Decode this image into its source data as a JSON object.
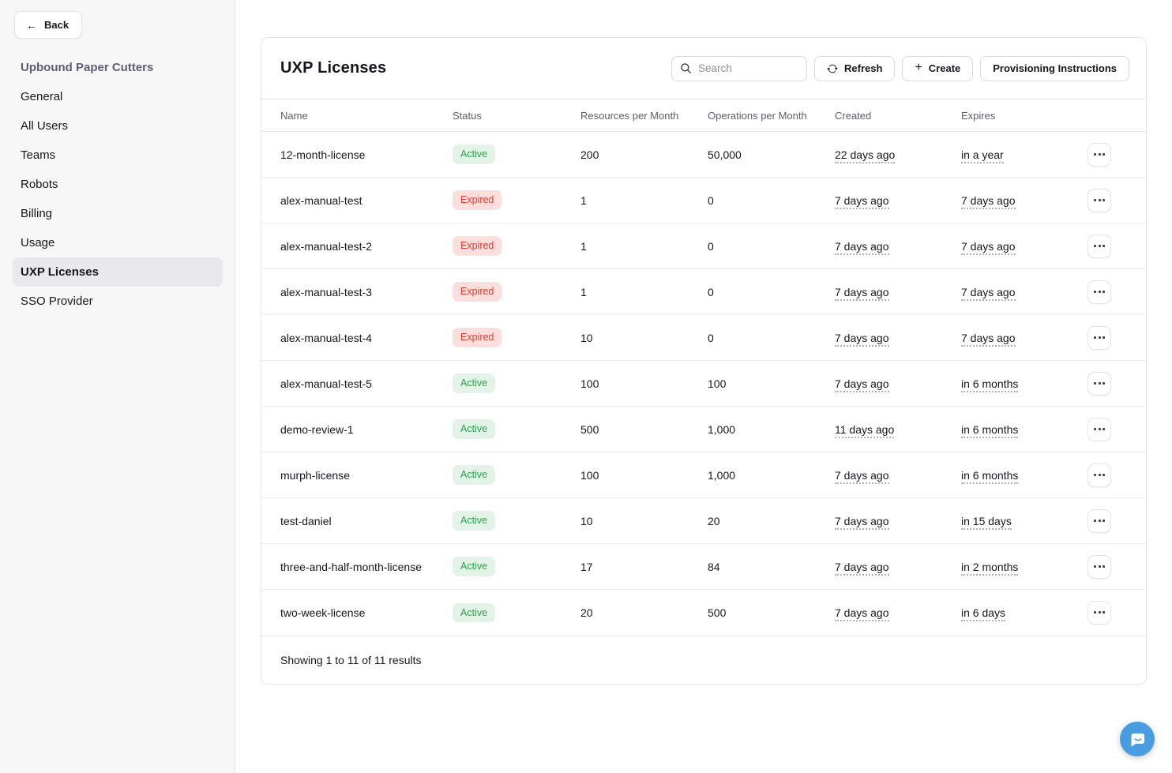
{
  "sidebar": {
    "back_label": "Back",
    "org_title": "Upbound Paper Cutters",
    "items": [
      {
        "label": "General",
        "active": false
      },
      {
        "label": "All Users",
        "active": false
      },
      {
        "label": "Teams",
        "active": false
      },
      {
        "label": "Robots",
        "active": false
      },
      {
        "label": "Billing",
        "active": false
      },
      {
        "label": "Usage",
        "active": false
      },
      {
        "label": "UXP Licenses",
        "active": true
      },
      {
        "label": "SSO Provider",
        "active": false
      }
    ]
  },
  "main": {
    "title": "UXP Licenses",
    "search_placeholder": "Search",
    "refresh_label": "Refresh",
    "create_label": "Create",
    "provisioning_label": "Provisioning Instructions",
    "table": {
      "columns": [
        "Name",
        "Status",
        "Resources per Month",
        "Operations per Month",
        "Created",
        "Expires"
      ],
      "rows": [
        {
          "name": "12-month-license",
          "status": "Active",
          "resources": "200",
          "operations": "50,000",
          "created": "22 days ago",
          "expires": "in a year"
        },
        {
          "name": "alex-manual-test",
          "status": "Expired",
          "resources": "1",
          "operations": "0",
          "created": "7 days ago",
          "expires": "7 days ago"
        },
        {
          "name": "alex-manual-test-2",
          "status": "Expired",
          "resources": "1",
          "operations": "0",
          "created": "7 days ago",
          "expires": "7 days ago"
        },
        {
          "name": "alex-manual-test-3",
          "status": "Expired",
          "resources": "1",
          "operations": "0",
          "created": "7 days ago",
          "expires": "7 days ago"
        },
        {
          "name": "alex-manual-test-4",
          "status": "Expired",
          "resources": "10",
          "operations": "0",
          "created": "7 days ago",
          "expires": "7 days ago"
        },
        {
          "name": "alex-manual-test-5",
          "status": "Active",
          "resources": "100",
          "operations": "100",
          "created": "7 days ago",
          "expires": "in 6 months"
        },
        {
          "name": "demo-review-1",
          "status": "Active",
          "resources": "500",
          "operations": "1,000",
          "created": "11 days ago",
          "expires": "in 6 months"
        },
        {
          "name": "murph-license",
          "status": "Active",
          "resources": "100",
          "operations": "1,000",
          "created": "7 days ago",
          "expires": "in 6 months"
        },
        {
          "name": "test-daniel",
          "status": "Active",
          "resources": "10",
          "operations": "20",
          "created": "7 days ago",
          "expires": "in 15 days"
        },
        {
          "name": "three-and-half-month-license",
          "status": "Active",
          "resources": "17",
          "operations": "84",
          "created": "7 days ago",
          "expires": "in 2 months"
        },
        {
          "name": "two-week-license",
          "status": "Active",
          "resources": "20",
          "operations": "500",
          "created": "7 days ago",
          "expires": "in 6 days"
        }
      ],
      "footer": "Showing 1 to 11 of 11 results"
    }
  },
  "icons": {
    "back": "arrow-left-icon",
    "search": "search-icon",
    "refresh": "refresh-icon",
    "create": "plus-icon",
    "row_menu": "ellipsis-icon",
    "chat": "chat-bubble-icon"
  },
  "colors": {
    "status_active_bg": "#e4f3e7",
    "status_active_text": "#2f9e4d",
    "status_expired_bg": "#fcdfdd",
    "status_expired_text": "#df3b32",
    "sidebar_bg": "#f7f7f8",
    "sidebar_selected_bg": "#e9e9ed",
    "org_title_text": "#5f5d75",
    "chat_button_bg": "#479de0"
  }
}
